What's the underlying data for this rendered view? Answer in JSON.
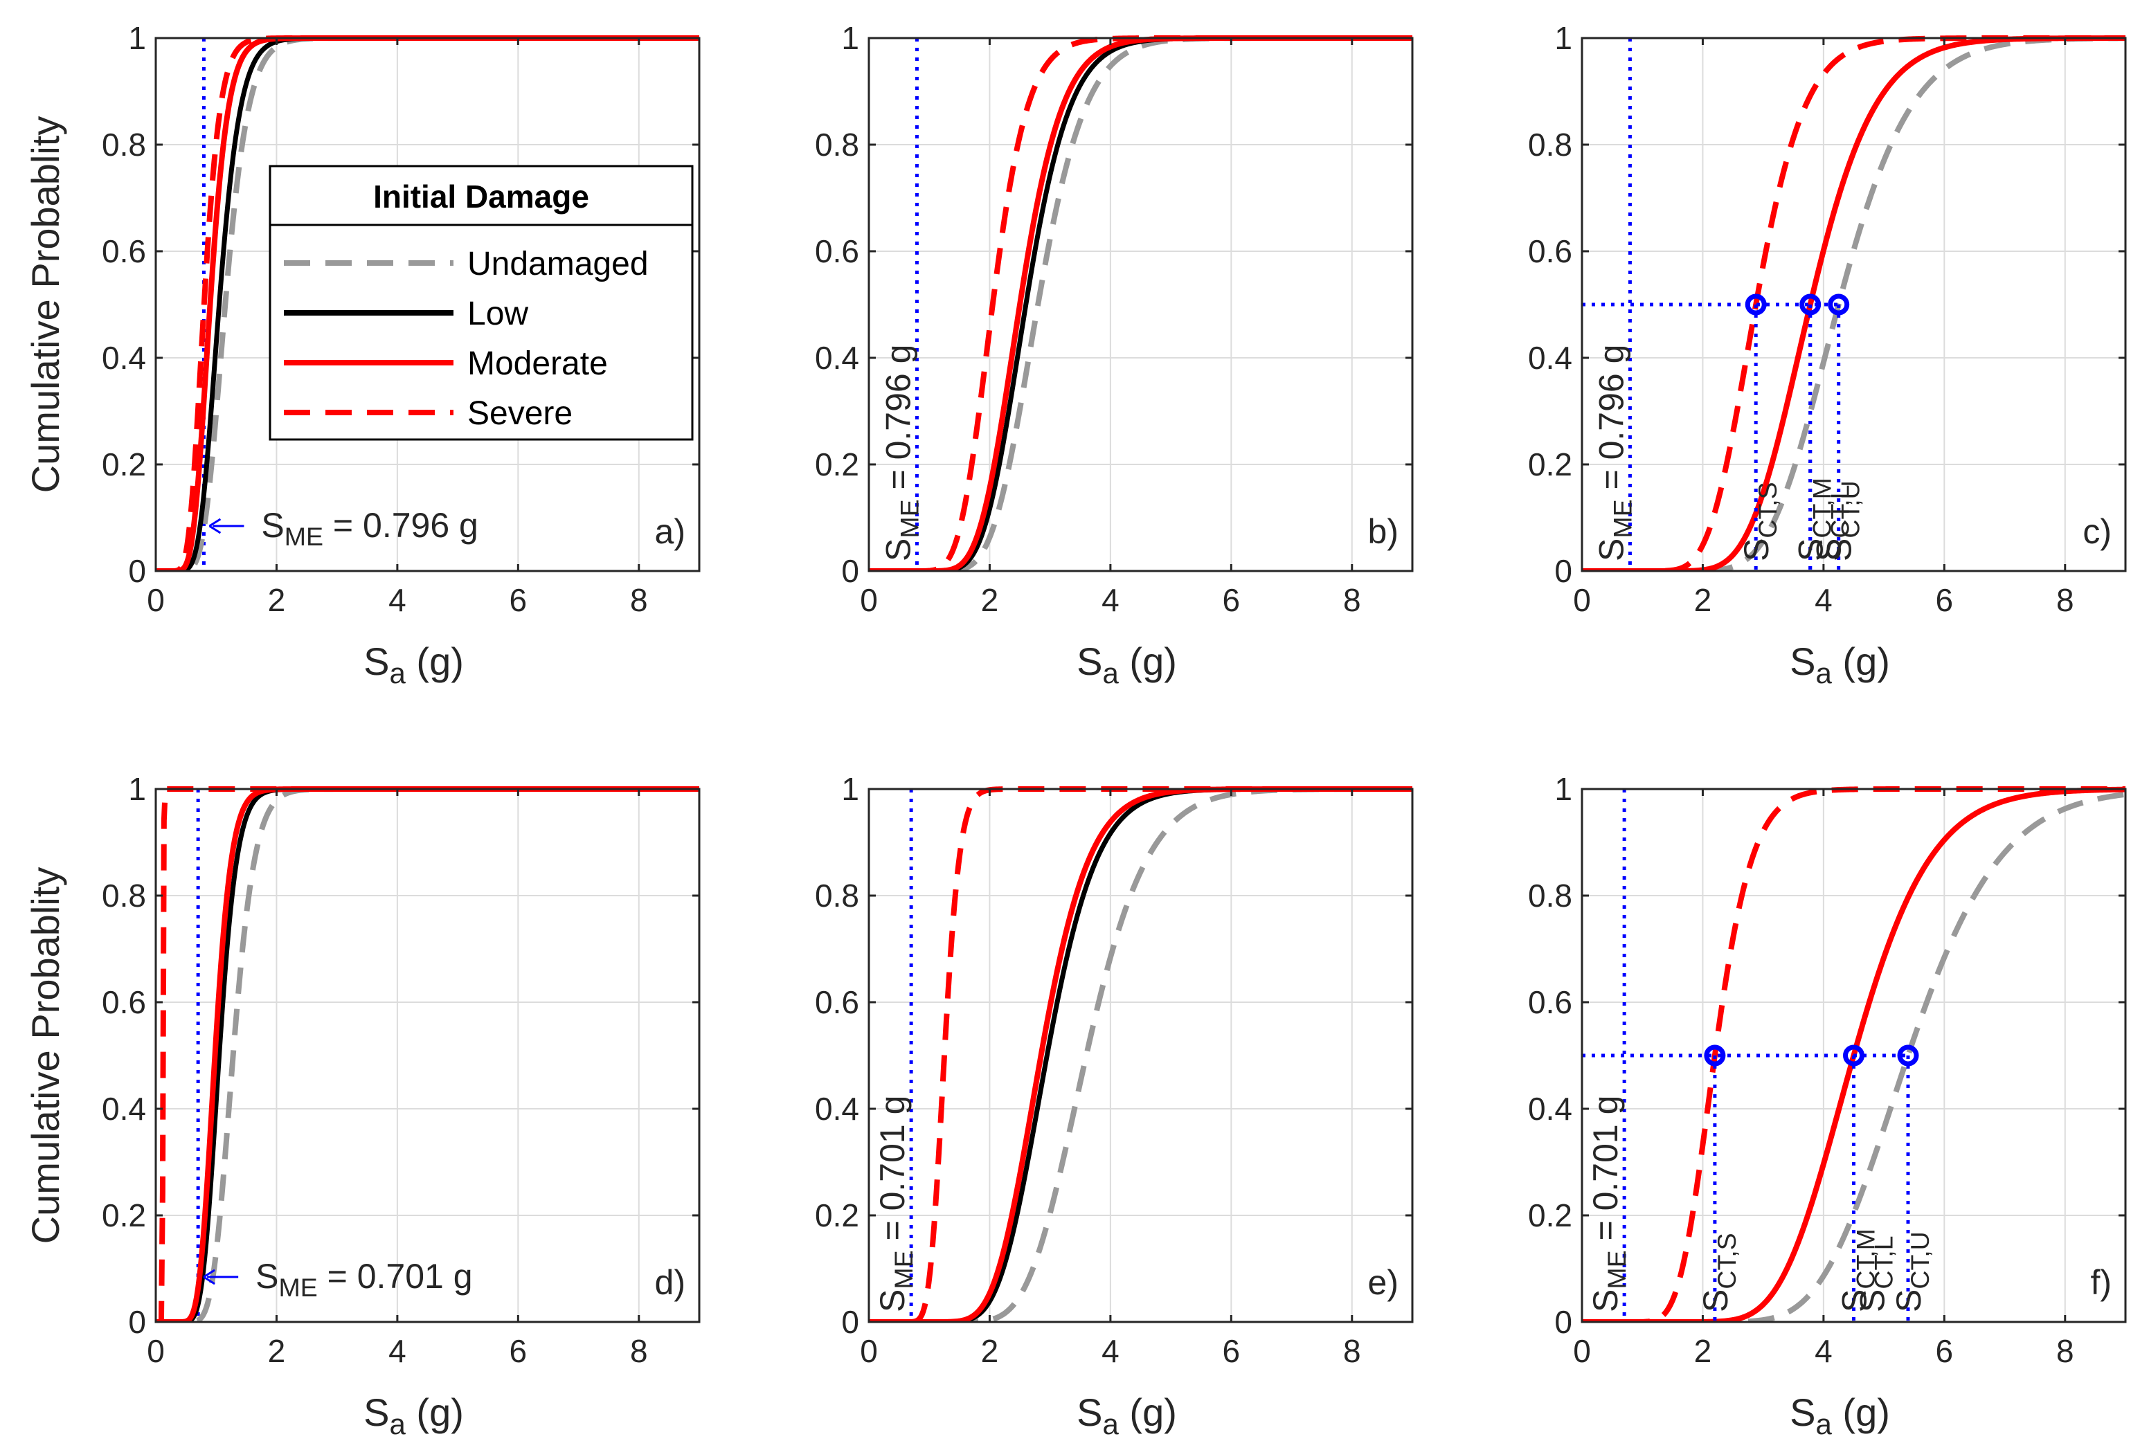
{
  "chart_data": {
    "type": "line",
    "figure_rows": 2,
    "figure_cols": 3,
    "xlabel": "S",
    "xlabel_sub": "a",
    "xlabel_unit": "(g)",
    "ylabel": "Cumulative Probablity",
    "xlim": [
      0,
      9
    ],
    "ylim": [
      0,
      1
    ],
    "xticks": [
      0,
      2,
      4,
      6,
      8
    ],
    "yticks": [
      0,
      0.2,
      0.4,
      0.6,
      0.8,
      1
    ],
    "xtick_labels": [
      "0",
      "2",
      "4",
      "6",
      "8"
    ],
    "ytick_labels": [
      "0",
      "0.2",
      "0.4",
      "0.6",
      "0.8",
      "1"
    ],
    "grid": true,
    "legend": {
      "title": "Initial Damage",
      "entries": [
        {
          "key": "undamaged",
          "label": "Undamaged",
          "color": "#999999",
          "dash": "dashed"
        },
        {
          "key": "low",
          "label": "Low",
          "color": "#000000",
          "dash": "solid"
        },
        {
          "key": "moderate",
          "label": "Moderate",
          "color": "#ff0000",
          "dash": "solid"
        },
        {
          "key": "severe",
          "label": "Severe",
          "color": "#ff0000",
          "dash": "dashed"
        }
      ]
    },
    "colors": {
      "sme_line": "#0000ff",
      "grid": "#dcdcdc",
      "axes": "#262626"
    },
    "panels": [
      {
        "id": "a",
        "label": "a)",
        "row": 0,
        "col": 0,
        "sme": 0.796,
        "sme_style": "arrow",
        "sme_prefix": "S",
        "sme_sub": "ME",
        "sme_value_text": " = 0.796 g",
        "show_ylabel": true,
        "show_legend": true,
        "series": [
          {
            "key": "undamaged",
            "median": 1.15,
            "beta": 0.26
          },
          {
            "key": "low",
            "median": 1.05,
            "beta": 0.26
          },
          {
            "key": "moderate",
            "median": 0.9,
            "beta": 0.26
          },
          {
            "key": "severe",
            "median": 0.8,
            "beta": 0.26
          }
        ]
      },
      {
        "id": "b",
        "label": "b)",
        "row": 0,
        "col": 1,
        "sme": 0.796,
        "sme_style": "vertical",
        "sme_prefix": "S",
        "sme_sub": "ME",
        "sme_value_text": " = 0.796 g",
        "show_ylabel": false,
        "show_legend": false,
        "series": [
          {
            "key": "undamaged",
            "median": 2.8,
            "beta": 0.22
          },
          {
            "key": "low",
            "median": 2.6,
            "beta": 0.22
          },
          {
            "key": "moderate",
            "median": 2.5,
            "beta": 0.22
          },
          {
            "key": "severe",
            "median": 2.05,
            "beta": 0.22
          }
        ]
      },
      {
        "id": "c",
        "label": "c)",
        "row": 0,
        "col": 2,
        "sme": 0.796,
        "sme_style": "vertical",
        "sme_prefix": "S",
        "sme_sub": "ME",
        "sme_value_text": " = 0.796 g",
        "show_ylabel": false,
        "show_legend": false,
        "median_markers": true,
        "marker_labels": [
          {
            "key": "severe",
            "prefix": "S",
            "sub": "CT,S"
          },
          {
            "key": "moderate",
            "prefix": "S",
            "sub": "CT,M"
          },
          {
            "key": "low",
            "prefix": "S",
            "sub": "CT,L"
          },
          {
            "key": "undamaged",
            "prefix": "S",
            "sub": "CT,U"
          }
        ],
        "series": [
          {
            "key": "undamaged",
            "median": 4.25,
            "beta": 0.22
          },
          {
            "key": "low",
            "median": 3.78,
            "beta": 0.22
          },
          {
            "key": "moderate",
            "median": 3.78,
            "beta": 0.22
          },
          {
            "key": "severe",
            "median": 2.88,
            "beta": 0.22
          }
        ]
      },
      {
        "id": "d",
        "label": "d)",
        "row": 1,
        "col": 0,
        "sme": 0.701,
        "sme_style": "arrow",
        "sme_prefix": "S",
        "sme_sub": "ME",
        "sme_value_text": " = 0.701 g",
        "show_ylabel": true,
        "show_legend": false,
        "series": [
          {
            "key": "undamaged",
            "median": 1.28,
            "beta": 0.22
          },
          {
            "key": "low",
            "median": 1.05,
            "beta": 0.22
          },
          {
            "key": "moderate",
            "median": 0.98,
            "beta": 0.22
          },
          {
            "key": "severe",
            "median": 0.12,
            "beta": 0.08
          }
        ]
      },
      {
        "id": "e",
        "label": "e)",
        "row": 1,
        "col": 1,
        "sme": 0.701,
        "sme_style": "vertical",
        "sme_prefix": "S",
        "sme_sub": "ME",
        "sme_value_text": " = 0.701 g",
        "show_ylabel": false,
        "show_legend": false,
        "series": [
          {
            "key": "undamaged",
            "median": 3.6,
            "beta": 0.22
          },
          {
            "key": "low",
            "median": 2.95,
            "beta": 0.22
          },
          {
            "key": "moderate",
            "median": 2.85,
            "beta": 0.22
          },
          {
            "key": "severe",
            "median": 1.25,
            "beta": 0.16
          }
        ]
      },
      {
        "id": "f",
        "label": "f)",
        "row": 1,
        "col": 2,
        "sme": 0.701,
        "sme_style": "vertical",
        "sme_prefix": "S",
        "sme_sub": "ME",
        "sme_value_text": " = 0.701 g",
        "show_ylabel": false,
        "show_legend": false,
        "median_markers": true,
        "marker_labels": [
          {
            "key": "severe",
            "prefix": "S",
            "sub": "CT,S"
          },
          {
            "key": "moderate",
            "prefix": "S",
            "sub": "CT,M"
          },
          {
            "key": "low",
            "prefix": "S",
            "sub": "CT,L"
          },
          {
            "key": "undamaged",
            "prefix": "S",
            "sub": "CT,U"
          }
        ],
        "series": [
          {
            "key": "undamaged",
            "median": 5.4,
            "beta": 0.22
          },
          {
            "key": "low",
            "median": 4.5,
            "beta": 0.22
          },
          {
            "key": "moderate",
            "median": 4.5,
            "beta": 0.22
          },
          {
            "key": "severe",
            "median": 2.2,
            "beta": 0.22
          }
        ]
      }
    ]
  }
}
